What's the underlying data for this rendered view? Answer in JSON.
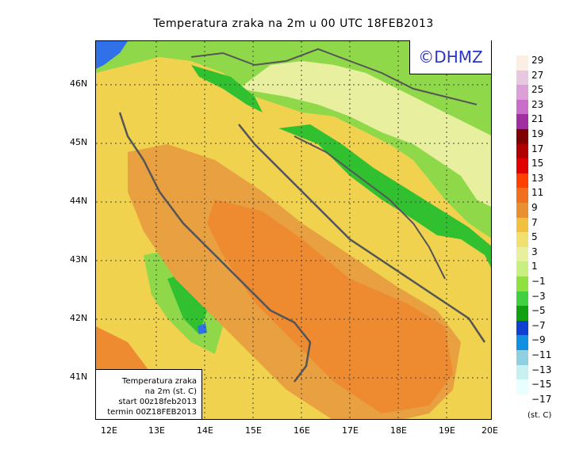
{
  "title": "Temperatura zraka na 2m u 00 UTC 18FEB2013",
  "logo": "©DHMZ",
  "info_box": {
    "line1": "Temperatura zraka",
    "line2": "na 2m (st. C)",
    "line3": "start 00z18feb2013",
    "line4": "termin 00Z18FEB2013"
  },
  "lat_labels": [
    "46N",
    "45N",
    "44N",
    "43N",
    "42N",
    "41N"
  ],
  "lon_labels": [
    "12E",
    "13E",
    "14E",
    "15E",
    "16E",
    "17E",
    "18E",
    "19E",
    "20E"
  ],
  "legend": {
    "unit": "(st. C)",
    "levels": [
      "29",
      "27",
      "25",
      "23",
      "21",
      "19",
      "17",
      "15",
      "13",
      "11",
      "9",
      "7",
      "5",
      "3",
      "1",
      "−1",
      "−3",
      "−5",
      "−7",
      "−9",
      "−11",
      "−13",
      "−15",
      "−17"
    ],
    "colors": [
      "#fbeee2",
      "#e8c8e0",
      "#dca0d8",
      "#c86ec8",
      "#a030a0",
      "#800000",
      "#b00000",
      "#e00000",
      "#ff4000",
      "#f07020",
      "#e89030",
      "#f0c040",
      "#f0e070",
      "#e8f0a0",
      "#c8f080",
      "#90e040",
      "#40d040",
      "#10a010",
      "#1040d0",
      "#1090e0",
      "#90d0e0",
      "#c8f0f0",
      "#e8ffff"
    ]
  },
  "colors": {
    "very_warm": "#ee8a30",
    "warm": "#e8a040",
    "mild": "#f0d24e",
    "cool": "#e8f0a0",
    "green": "#8fd84a",
    "dark_green": "#30c030",
    "blue": "#3070e8",
    "coast": "#555555"
  }
}
